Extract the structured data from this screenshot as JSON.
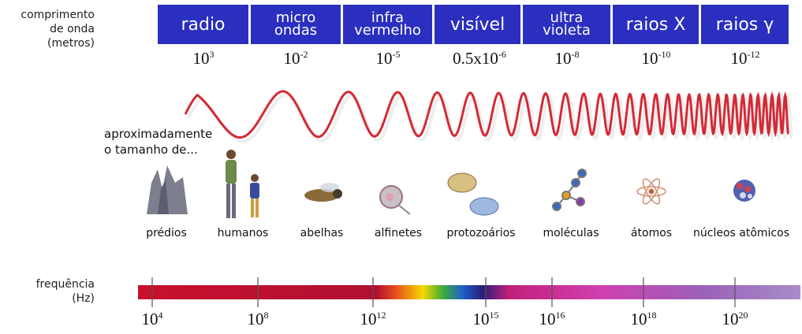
{
  "header": {
    "wavelength_label": [
      "comprimento",
      "de onda",
      "(metros)"
    ]
  },
  "bands": [
    {
      "name": [
        "radio"
      ],
      "wavelength": {
        "base": "10",
        "exp": "3"
      }
    },
    {
      "name": [
        "micro",
        "ondas"
      ],
      "wavelength": {
        "base": "10",
        "exp": "-2"
      }
    },
    {
      "name": [
        "infra",
        "vermelho"
      ],
      "wavelength": {
        "base": "10",
        "exp": "-5"
      }
    },
    {
      "name": [
        "visível"
      ],
      "wavelength": {
        "base": "0.5x10",
        "exp": "-6"
      }
    },
    {
      "name": [
        "ultra",
        "violeta"
      ],
      "wavelength": {
        "base": "10",
        "exp": "-8"
      }
    },
    {
      "name": [
        "raios X"
      ],
      "wavelength": {
        "base": "10",
        "exp": "-10"
      }
    },
    {
      "name": [
        "raios γ"
      ],
      "wavelength": {
        "base": "10",
        "exp": "-12"
      }
    }
  ],
  "size_label": [
    "aproximadamente",
    "o tamanho de..."
  ],
  "objects": [
    "prédios",
    "humanos",
    "abelhas",
    "alfinetes",
    "protozoários",
    "moléculas",
    "átomos",
    "núcleos atômicos"
  ],
  "frequency": {
    "label": [
      "frequência",
      "(Hz)"
    ],
    "ticks": [
      {
        "base": "10",
        "exp": "4"
      },
      {
        "base": "10",
        "exp": "8"
      },
      {
        "base": "10",
        "exp": "12"
      },
      {
        "base": "10",
        "exp": "15"
      },
      {
        "base": "10",
        "exp": "16"
      },
      {
        "base": "10",
        "exp": "18"
      },
      {
        "base": "10",
        "exp": "20"
      }
    ]
  }
}
